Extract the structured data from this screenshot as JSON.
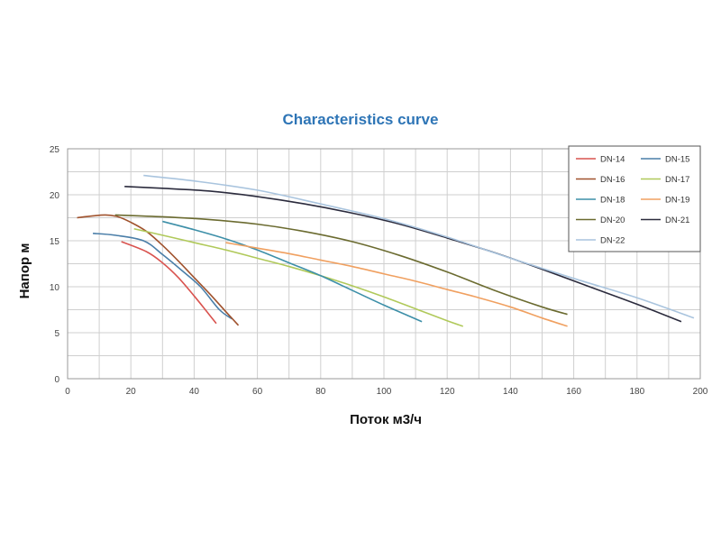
{
  "chart_data": {
    "type": "line",
    "title": "Characteristics curve",
    "xlabel": "Поток м3/ч",
    "ylabel": "Напор м",
    "xlim": [
      0,
      200
    ],
    "ylim": [
      0,
      25
    ],
    "xticks": [
      "0",
      "20",
      "40",
      "60",
      "80",
      "100",
      "120",
      "140",
      "160",
      "180",
      "200"
    ],
    "yticks": [
      "0",
      "5",
      "10",
      "15",
      "20",
      "25"
    ],
    "grid": true,
    "legend_position": "top-right",
    "series": [
      {
        "name": "DN-14",
        "color": "#d9534f",
        "x": [
          17,
          25,
          30,
          35,
          40,
          44,
          47
        ],
        "y": [
          14.9,
          13.8,
          12.6,
          11.0,
          9.0,
          7.3,
          6.0
        ]
      },
      {
        "name": "DN-15",
        "color": "#4a7ea8",
        "x": [
          8,
          15,
          24,
          30,
          36,
          42,
          48,
          52
        ],
        "y": [
          15.8,
          15.6,
          15.0,
          13.5,
          11.8,
          10.0,
          7.5,
          6.5
        ]
      },
      {
        "name": "DN-16",
        "color": "#a0522d",
        "x": [
          3,
          8,
          12,
          16,
          20,
          25,
          30,
          35,
          40,
          45,
          50,
          54
        ],
        "y": [
          17.5,
          17.7,
          17.8,
          17.6,
          17.0,
          16.0,
          14.5,
          12.8,
          11.0,
          9.2,
          7.3,
          5.8
        ]
      },
      {
        "name": "DN-17",
        "color": "#b0c95a",
        "x": [
          21,
          30,
          40,
          50,
          60,
          70,
          80,
          90,
          100,
          110,
          120,
          125
        ],
        "y": [
          16.3,
          15.6,
          14.8,
          14.0,
          13.1,
          12.2,
          11.2,
          10.1,
          8.9,
          7.6,
          6.3,
          5.7
        ]
      },
      {
        "name": "DN-18",
        "color": "#3d8fa8",
        "x": [
          30,
          40,
          50,
          60,
          70,
          80,
          90,
          100,
          108,
          112
        ],
        "y": [
          17.1,
          16.2,
          15.2,
          14.0,
          12.6,
          11.2,
          9.6,
          8.0,
          6.8,
          6.2
        ]
      },
      {
        "name": "DN-19",
        "color": "#f0a060",
        "x": [
          50,
          60,
          70,
          80,
          90,
          100,
          110,
          120,
          130,
          140,
          150,
          158
        ],
        "y": [
          14.8,
          14.2,
          13.6,
          12.9,
          12.2,
          11.4,
          10.6,
          9.7,
          8.8,
          7.8,
          6.6,
          5.7
        ]
      },
      {
        "name": "DN-20",
        "color": "#6b6b30",
        "x": [
          15,
          30,
          45,
          60,
          75,
          90,
          105,
          120,
          135,
          150,
          158
        ],
        "y": [
          17.8,
          17.6,
          17.3,
          16.8,
          16.0,
          14.9,
          13.4,
          11.6,
          9.6,
          7.8,
          7.0
        ]
      },
      {
        "name": "DN-21",
        "color": "#2b2b3d",
        "x": [
          18,
          30,
          45,
          60,
          75,
          90,
          105,
          120,
          135,
          150,
          165,
          180,
          194
        ],
        "y": [
          20.9,
          20.7,
          20.4,
          19.8,
          19.0,
          18.0,
          16.8,
          15.3,
          13.7,
          11.9,
          10.0,
          8.1,
          6.2
        ]
      },
      {
        "name": "DN-22",
        "color": "#a9c4de",
        "x": [
          24,
          40,
          60,
          80,
          100,
          120,
          140,
          160,
          180,
          198
        ],
        "y": [
          22.1,
          21.5,
          20.5,
          19.0,
          17.4,
          15.4,
          13.1,
          10.9,
          8.8,
          6.6
        ]
      }
    ]
  }
}
